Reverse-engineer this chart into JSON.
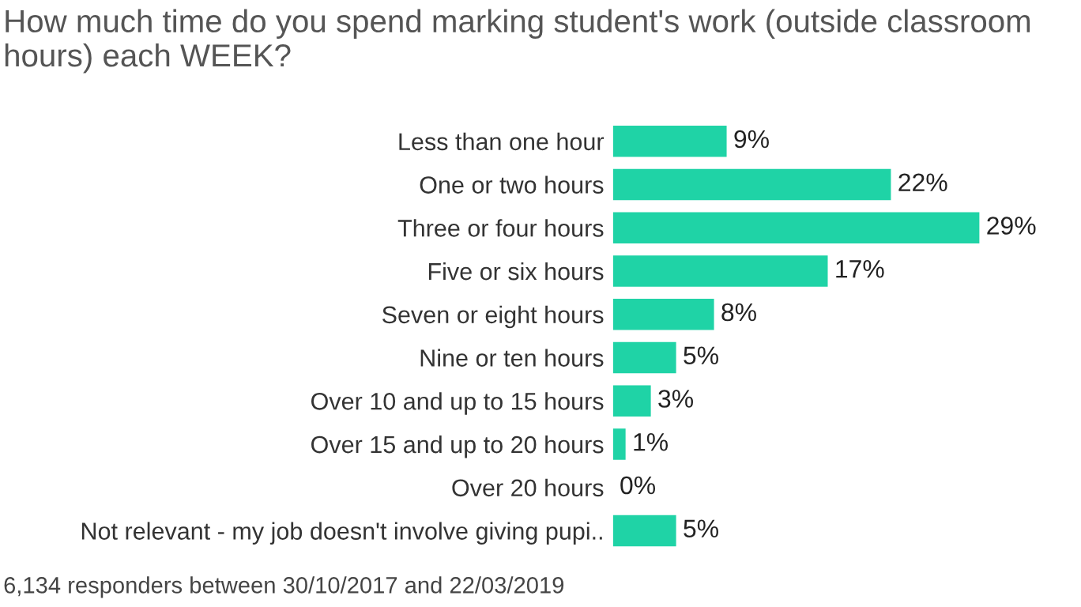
{
  "chart_data": {
    "type": "bar",
    "orientation": "horizontal",
    "title": "How much time do you spend marking student's work (outside classroom hours) each WEEK?",
    "categories": [
      "Less than one hour",
      "One or two hours",
      "Three or four hours",
      "Five or six hours",
      "Seven or eight hours",
      "Nine or ten hours",
      "Over 10 and up to 15 hours",
      "Over 15 and up to 20 hours",
      "Over 20 hours",
      "Not relevant - my job doesn't involve giving pupi.."
    ],
    "values": [
      9,
      22,
      29,
      17,
      8,
      5,
      3,
      1,
      0,
      5
    ],
    "value_labels": [
      "9%",
      "22%",
      "29%",
      "17%",
      "8%",
      "5%",
      "3%",
      "1%",
      "0%",
      "5%"
    ],
    "color": "#1fd3a6",
    "annotations": [
      "6,134 responders between 30/10/2017 and 22/03/2019"
    ]
  }
}
